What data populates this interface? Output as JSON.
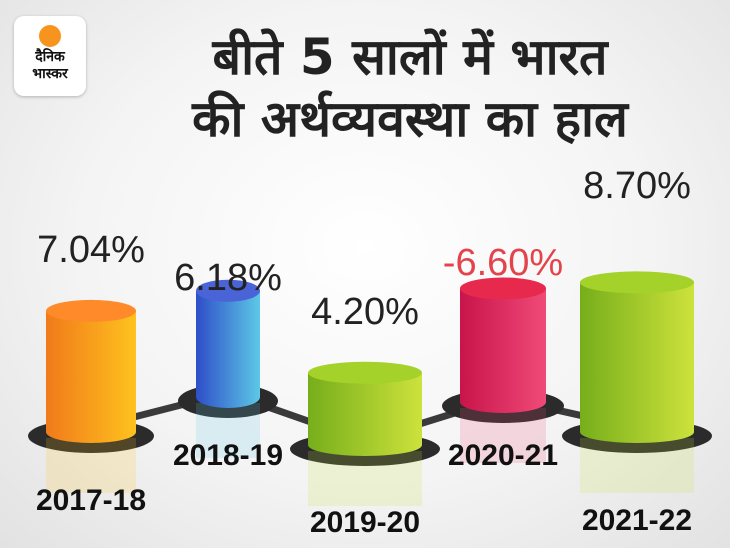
{
  "logo": {
    "line1": "दैनिक",
    "line2": "भास्कर"
  },
  "title": {
    "line1": "बीते 5 सालों में भारत",
    "line2": "की अर्थव्यवस्था का हाल"
  },
  "chart_data": {
    "type": "bar",
    "title": "बीते 5 सालों में भारत की अर्थव्यवस्था का हाल",
    "categories": [
      "2017-18",
      "2018-19",
      "2019-20",
      "2020-21",
      "2021-22"
    ],
    "values": [
      7.04,
      6.18,
      4.2,
      -6.6,
      8.7
    ],
    "labels": [
      "7.04%",
      "6.18%",
      "4.20%",
      "-6.60%",
      "8.70%"
    ],
    "negative_label_color": "#e4434b",
    "label_color": "#222222",
    "bar_colors": [
      [
        "#f07a1a",
        "#ffc21e"
      ],
      [
        "#2e4ec8",
        "#5dc8e6"
      ],
      [
        "#76ae1a",
        "#cde23c"
      ],
      [
        "#c8144a",
        "#f04a78"
      ],
      [
        "#76ae1a",
        "#cde23c"
      ]
    ],
    "bar_top_colors": [
      "#ff8a2a",
      "#4a63d6",
      "#a4d22a",
      "#e8294e",
      "#a4d22a"
    ]
  }
}
